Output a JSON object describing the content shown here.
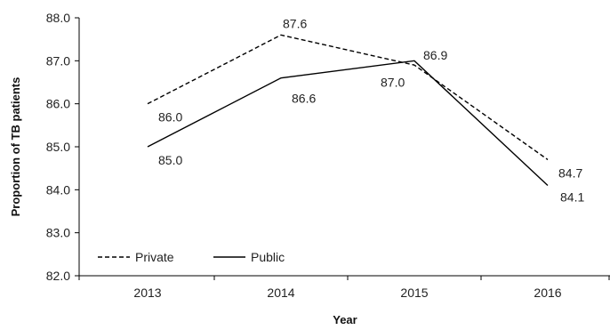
{
  "chart_data": {
    "type": "line",
    "categories": [
      "2013",
      "2014",
      "2015",
      "2016"
    ],
    "xlabel": "Year",
    "ylabel": "Proportion of TB patients",
    "ylim": [
      82.0,
      88.0
    ],
    "yticks": [
      "82.0",
      "83.0",
      "84.0",
      "85.0",
      "86.0",
      "87.0",
      "88.0"
    ],
    "grid": false,
    "legend_position": "bottom-left",
    "series": [
      {
        "name": "Private",
        "style": "dashed",
        "color": "#000000",
        "values": [
          86.0,
          87.6,
          86.9,
          84.7
        ],
        "labels": [
          "86.0",
          "87.6",
          "86.9",
          "84.7"
        ]
      },
      {
        "name": "Public",
        "style": "solid",
        "color": "#000000",
        "values": [
          85.0,
          86.6,
          87.0,
          84.1
        ],
        "labels": [
          "85.0",
          "86.6",
          "87.0",
          "84.1"
        ]
      }
    ]
  }
}
